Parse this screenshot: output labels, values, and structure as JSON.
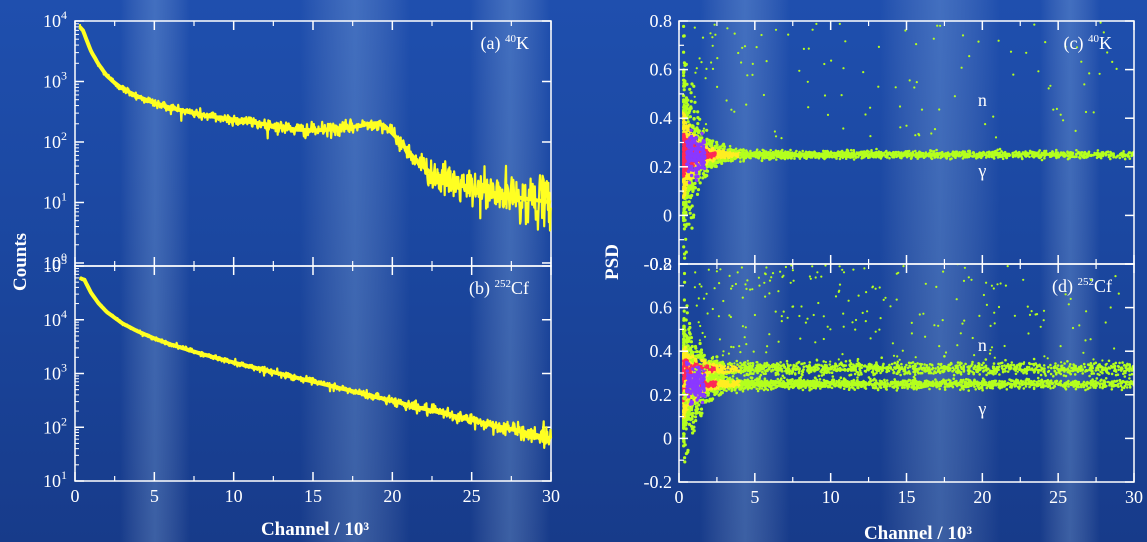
{
  "colors": {
    "spectrum": "#ffff22",
    "frame": "#ffffff",
    "psd_low": "#b4ff1e",
    "psd_mid": "#ffee22",
    "psd_high": "#ff2a55",
    "psd_core": "#8a38ff"
  },
  "chart_data": [
    {
      "type": "line",
      "panel": "(a)",
      "label": "(a) 40K",
      "label_prefix": "(a) ",
      "label_sup": "40",
      "label_elem": "K",
      "xlabel": "Channel / 10³",
      "ylabel": "Counts",
      "xlim": [
        0,
        30
      ],
      "ylim_log10": [
        -0.05,
        4
      ],
      "yscale": "log",
      "xticks": [
        0,
        5,
        10,
        15,
        20,
        25,
        30
      ],
      "yticks": [
        {
          "value_log10": 0,
          "base": "10",
          "exp": "0"
        },
        {
          "value_log10": 1,
          "base": "10",
          "exp": "1"
        },
        {
          "value_log10": 2,
          "base": "10",
          "exp": "2"
        },
        {
          "value_log10": 3,
          "base": "10",
          "exp": "3"
        },
        {
          "value_log10": 4,
          "base": "10",
          "exp": "4"
        }
      ],
      "series": [
        {
          "x": [
            0.3,
            0.5,
            1,
            1.5,
            2,
            2.5,
            3,
            4,
            5,
            6,
            7,
            8,
            9,
            10,
            11,
            12,
            13,
            14,
            15,
            16,
            17,
            18,
            18.5,
            19,
            19.5,
            20,
            20.5,
            21,
            21.5,
            22,
            22.5,
            23,
            24,
            25,
            26,
            27,
            28,
            29,
            30
          ],
          "y": [
            8000,
            7000,
            3200,
            1900,
            1250,
            950,
            760,
            560,
            440,
            370,
            320,
            280,
            255,
            235,
            215,
            195,
            175,
            160,
            155,
            160,
            170,
            185,
            200,
            205,
            185,
            140,
            100,
            70,
            50,
            38,
            30,
            25,
            20,
            17,
            15,
            13,
            12,
            11,
            10
          ]
        }
      ]
    },
    {
      "type": "line",
      "panel": "(b)",
      "label": "(b) 252Cf",
      "label_prefix": "(b) ",
      "label_sup": "252",
      "label_elem": "Cf",
      "xlabel": "Channel / 10³",
      "ylabel": "Counts",
      "xlim": [
        0,
        30
      ],
      "ylim_log10": [
        1,
        5
      ],
      "yscale": "log",
      "xticks": [
        0,
        5,
        10,
        15,
        20,
        25,
        30
      ],
      "yticks": [
        {
          "value_log10": 1,
          "base": "10",
          "exp": "1"
        },
        {
          "value_log10": 2,
          "base": "10",
          "exp": "2"
        },
        {
          "value_log10": 3,
          "base": "10",
          "exp": "3"
        },
        {
          "value_log10": 4,
          "base": "10",
          "exp": "4"
        },
        {
          "value_log10": 5,
          "base": "10",
          "exp": "5"
        }
      ],
      "series": [
        {
          "x": [
            0.3,
            0.6,
            1,
            1.5,
            2,
            3,
            4,
            5,
            6,
            8,
            10,
            12,
            14,
            16,
            18,
            20,
            22,
            24,
            26,
            28,
            30
          ],
          "y": [
            60000,
            55000,
            32000,
            20000,
            14000,
            8500,
            6000,
            4500,
            3500,
            2300,
            1600,
            1150,
            830,
            600,
            430,
            310,
            220,
            160,
            115,
            85,
            62
          ]
        }
      ]
    },
    {
      "type": "scatter",
      "panel": "(c)",
      "label": "(c) 40K",
      "label_prefix": "(c) ",
      "label_sup": "40",
      "label_elem": "K",
      "xlabel": "Channel / 10³",
      "ylabel": "PSD",
      "xlim": [
        0,
        30
      ],
      "ylim": [
        -0.2,
        0.8
      ],
      "xticks": [
        0,
        5,
        10,
        15,
        20,
        25,
        30
      ],
      "yticks": [
        0.8,
        0.6,
        0.4,
        0.2,
        0,
        -0.2
      ],
      "ytick_labels": [
        "0.8",
        "0.6",
        "0.4",
        "0.2",
        "0",
        "-0.2"
      ],
      "annotations": [
        {
          "text": "n",
          "x": 20,
          "y": 0.45
        },
        {
          "text": "γ",
          "x": 20,
          "y": 0.16
        }
      ],
      "bands": [
        {
          "name": "γ",
          "center": 0.25,
          "spread_low_channel": 0.5,
          "spread_high_channel": 0.015
        }
      ],
      "neutron_band": false
    },
    {
      "type": "scatter",
      "panel": "(d)",
      "label": "(d) 252Cf",
      "label_prefix": "(d) ",
      "label_sup": "252",
      "label_elem": "Cf",
      "xlabel": "Channel / 10³",
      "ylabel": "PSD",
      "xlim": [
        0,
        30
      ],
      "ylim": [
        -0.2,
        0.8
      ],
      "xticks": [
        0,
        5,
        10,
        15,
        20,
        25,
        30
      ],
      "yticks": [
        0.8,
        0.6,
        0.4,
        0.2,
        0,
        -0.2
      ],
      "ytick_labels": [
        "0.8",
        "0.6",
        "0.4",
        "0.2",
        "0",
        "-0.2"
      ],
      "annotations": [
        {
          "text": "n",
          "x": 20,
          "y": 0.4
        },
        {
          "text": "γ",
          "x": 20,
          "y": 0.11
        }
      ],
      "bands": [
        {
          "name": "γ",
          "center": 0.25,
          "spread_low_channel": 0.45,
          "spread_high_channel": 0.02
        },
        {
          "name": "n",
          "center": 0.32,
          "spread_low_channel": 0.3,
          "spread_high_channel": 0.03
        }
      ],
      "neutron_band": true
    }
  ],
  "axis_titles": {
    "left_y": "Counts",
    "right_y": "PSD",
    "left_x": "Channel / 10³",
    "right_x": "Channel / 10³"
  }
}
